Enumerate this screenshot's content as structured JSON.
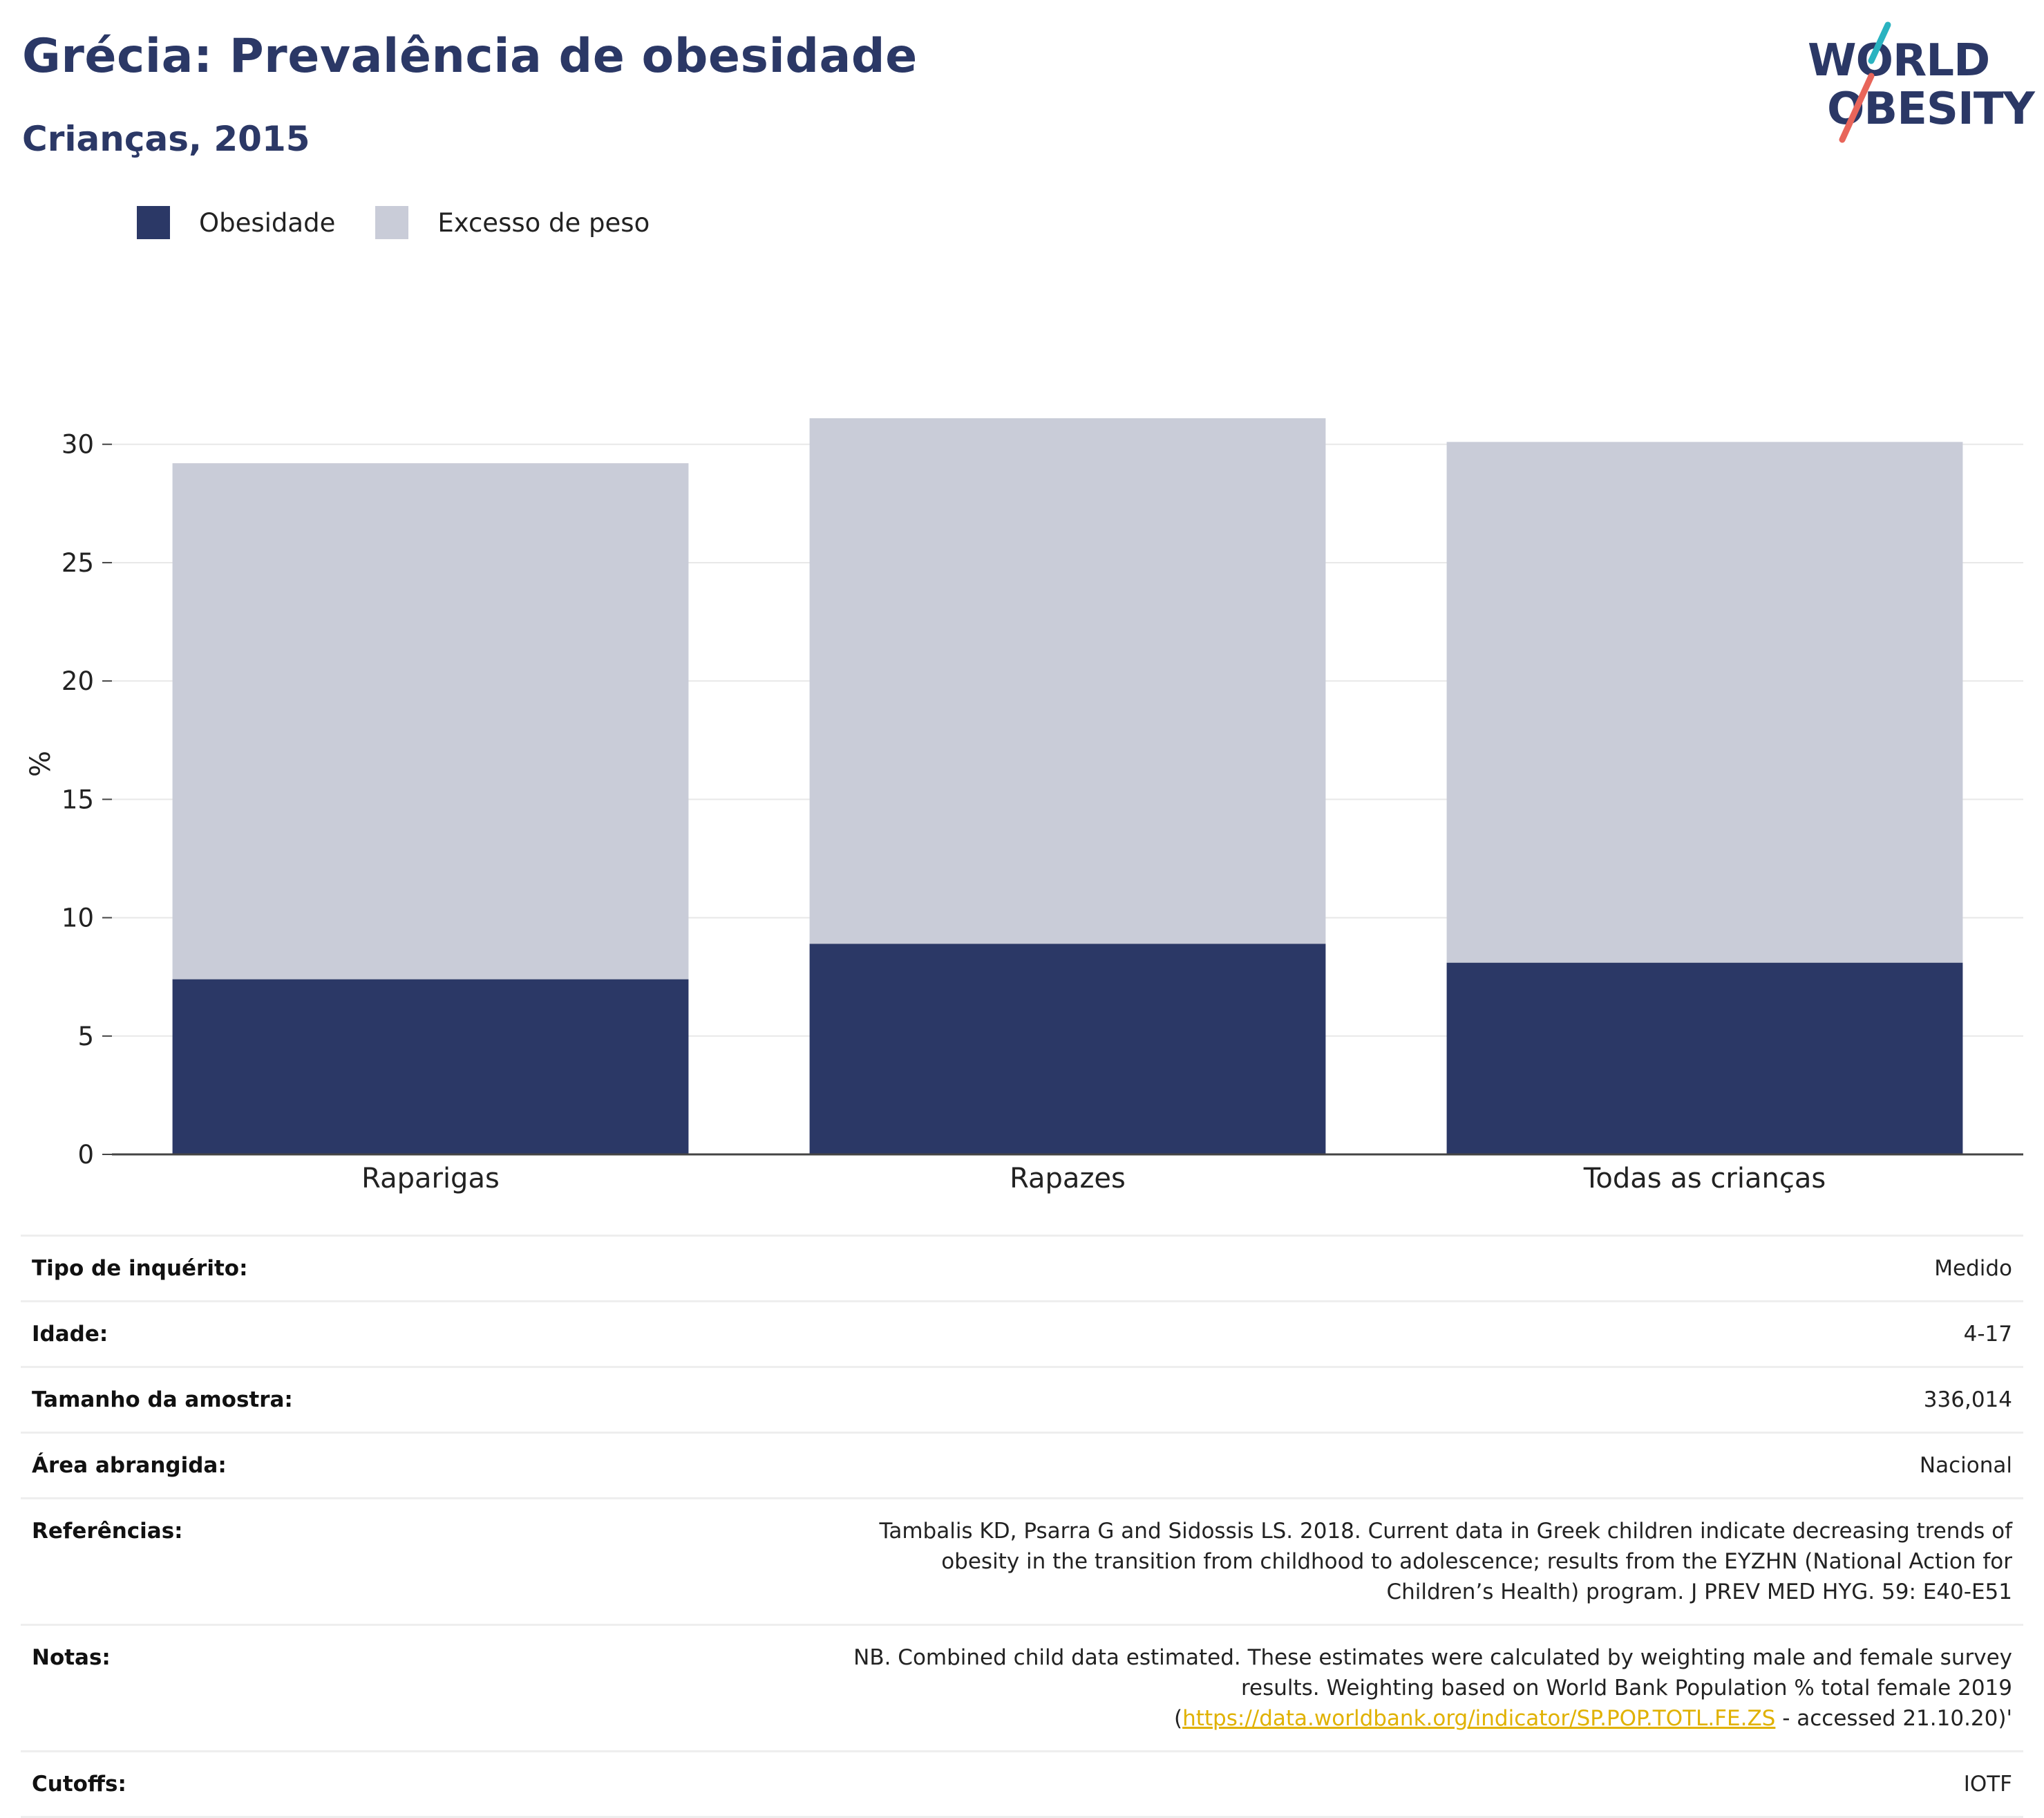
{
  "header": {
    "title": "Grécia: Prevalência de obesidade",
    "subtitle": "Crianças, 2015"
  },
  "logo": {
    "line1": "WORLD",
    "line2": "OBESITY",
    "slash_colors": [
      "#2ab3c0",
      "#e8655a"
    ]
  },
  "colors": {
    "obesity": "#2b3866",
    "overweight": "#c9ccd8",
    "title": "#2b3866",
    "link": "#e0b100"
  },
  "legend": {
    "items": [
      {
        "label": "Obesidade",
        "color": "#2b3866"
      },
      {
        "label": "Excesso de peso",
        "color": "#c9ccd8"
      }
    ]
  },
  "chart_data": {
    "type": "bar",
    "stacked": true,
    "categories": [
      "Raparigas",
      "Rapazes",
      "Todas as crianças"
    ],
    "series": [
      {
        "name": "Obesidade",
        "values": [
          7.4,
          8.9,
          8.1
        ]
      },
      {
        "name": "Excesso de peso",
        "values": [
          21.8,
          22.2,
          22.0
        ]
      }
    ],
    "ylabel": "%",
    "ylim": [
      0,
      33
    ],
    "yticks": [
      0,
      5,
      10,
      15,
      20,
      25,
      30
    ],
    "grid": true,
    "legend_position": "top-left"
  },
  "info": {
    "rows": [
      {
        "key": "Tipo de inquérito:",
        "value": "Medido"
      },
      {
        "key": "Idade:",
        "value": "4-17"
      },
      {
        "key": "Tamanho da amostra:",
        "value": "336,014"
      },
      {
        "key": "Área abrangida:",
        "value": "Nacional"
      },
      {
        "key": "Referências:",
        "value": "Tambalis KD, Psarra G and Sidossis LS. 2018. Current data in Greek children indicate decreasing trends of obesity in the transition from childhood to adolescence; results from the EYZHN (National Action for Children’s Health) program. J PREV MED HYG. 59: E40-E51"
      },
      {
        "key": "Notas:",
        "value_before": "NB. Combined child data estimated. These estimates were calculated by weighting male and female survey results. Weighting based on World Bank Population % total female 2019 (",
        "link": "https://data.worldbank.org/indicator/SP.POP.TOTL.FE.ZS",
        "value_after": " - accessed 21.10.20)'"
      },
      {
        "key": "Cutoffs:",
        "value": "IOTF"
      }
    ]
  }
}
